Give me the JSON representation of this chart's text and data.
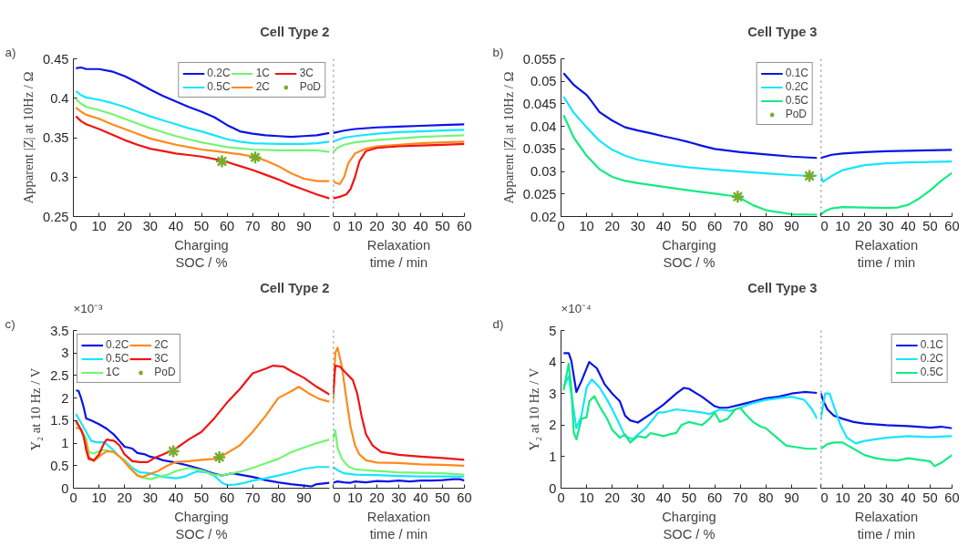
{
  "chart_data": [
    {
      "type": "line",
      "title": "Cell Type 2",
      "ylabel": "Apparent |Z| at 10Hz / Ω",
      "xlabel": "Charging\nSOC / %",
      "annotations": [
        "a)"
      ],
      "xlim": [
        0,
        100
      ],
      "xticks": [
        0,
        10,
        20,
        30,
        40,
        50,
        60,
        70,
        80,
        90
      ],
      "ylim": [
        0.25,
        0.45
      ],
      "yticks": [
        0.25,
        0.3,
        0.35,
        0.4,
        0.45
      ],
      "legend": "top right",
      "series": [
        {
          "name": "0.2C",
          "color": "#0a14e6",
          "x": [
            1,
            3,
            5,
            10,
            15,
            20,
            25,
            30,
            35,
            40,
            45,
            50,
            55,
            60,
            65,
            70,
            75,
            80,
            85,
            90,
            95,
            100
          ],
          "values": [
            0.438,
            0.439,
            0.437,
            0.437,
            0.434,
            0.428,
            0.42,
            0.411,
            0.403,
            0.396,
            0.389,
            0.383,
            0.376,
            0.366,
            0.358,
            0.355,
            0.353,
            0.352,
            0.351,
            0.352,
            0.353,
            0.356
          ]
        },
        {
          "name": "0.5C",
          "color": "#17e5ff",
          "x": [
            1,
            3,
            5,
            10,
            15,
            20,
            25,
            30,
            35,
            40,
            45,
            50,
            55,
            60,
            65,
            70,
            80,
            90,
            95,
            100
          ],
          "values": [
            0.409,
            0.404,
            0.401,
            0.398,
            0.394,
            0.389,
            0.383,
            0.377,
            0.372,
            0.367,
            0.362,
            0.358,
            0.353,
            0.348,
            0.345,
            0.343,
            0.342,
            0.342,
            0.343,
            0.345
          ]
        },
        {
          "name": "1C",
          "color": "#73f573",
          "x": [
            1,
            3,
            5,
            10,
            15,
            20,
            25,
            30,
            35,
            40,
            45,
            50,
            55,
            60,
            70,
            80,
            90,
            95,
            100
          ],
          "values": [
            0.399,
            0.393,
            0.389,
            0.385,
            0.38,
            0.374,
            0.368,
            0.362,
            0.357,
            0.352,
            0.348,
            0.344,
            0.341,
            0.338,
            0.335,
            0.334,
            0.334,
            0.334,
            0.332
          ]
        },
        {
          "name": "2C",
          "color": "#ff8a1c",
          "x": [
            1,
            3,
            5,
            10,
            15,
            20,
            25,
            30,
            35,
            40,
            45,
            50,
            55,
            60,
            65,
            70,
            75,
            80,
            85,
            90,
            95,
            100
          ],
          "values": [
            0.388,
            0.383,
            0.379,
            0.374,
            0.367,
            0.361,
            0.355,
            0.349,
            0.345,
            0.341,
            0.338,
            0.335,
            0.333,
            0.331,
            0.329,
            0.326,
            0.321,
            0.314,
            0.305,
            0.298,
            0.295,
            0.295
          ]
        },
        {
          "name": "3C",
          "color": "#f01414",
          "x": [
            1,
            3,
            5,
            10,
            15,
            20,
            25,
            30,
            35,
            40,
            45,
            50,
            55,
            60,
            65,
            70,
            75,
            80,
            85,
            90,
            95,
            100
          ],
          "values": [
            0.377,
            0.371,
            0.367,
            0.361,
            0.354,
            0.347,
            0.341,
            0.336,
            0.333,
            0.33,
            0.328,
            0.326,
            0.323,
            0.319,
            0.314,
            0.309,
            0.303,
            0.297,
            0.29,
            0.284,
            0.278,
            0.273
          ]
        },
        {
          "name": "PoD",
          "type": "scatter",
          "marker": "cross",
          "color": "#77ac30",
          "x": [
            58,
            71
          ],
          "values": [
            0.32,
            0.325
          ]
        }
      ]
    },
    {
      "type": "line",
      "xlabel": "Relaxation\ntime / min",
      "xlim": [
        0,
        60
      ],
      "xticks": [
        0,
        10,
        20,
        30,
        40,
        50,
        60
      ],
      "ylim": [
        0.25,
        0.45
      ],
      "tick_labels": "x",
      "ref_lines": [
        {
          "axis": "x",
          "value": 0,
          "line_style": "dotted",
          "color": "#404040"
        }
      ],
      "series": [
        {
          "color": "#0a14e6",
          "x": [
            0,
            5,
            10,
            20,
            30,
            40,
            50,
            60
          ],
          "values": [
            0.356,
            0.359,
            0.361,
            0.363,
            0.364,
            0.365,
            0.366,
            0.367
          ]
        },
        {
          "color": "#17e5ff",
          "x": [
            0,
            5,
            10,
            20,
            30,
            40,
            50,
            60
          ],
          "values": [
            0.345,
            0.35,
            0.352,
            0.355,
            0.357,
            0.358,
            0.359,
            0.36
          ]
        },
        {
          "color": "#73f573",
          "x": [
            0,
            2,
            5,
            10,
            20,
            30,
            40,
            50,
            60
          ],
          "values": [
            0.332,
            0.337,
            0.341,
            0.344,
            0.347,
            0.349,
            0.351,
            0.352,
            0.353
          ]
        },
        {
          "color": "#ff8a1c",
          "x": [
            0,
            1,
            3,
            5,
            7,
            10,
            15,
            20,
            30,
            40,
            50,
            60
          ],
          "values": [
            0.295,
            0.293,
            0.291,
            0.3,
            0.318,
            0.33,
            0.336,
            0.339,
            0.341,
            0.343,
            0.344,
            0.345
          ]
        },
        {
          "color": "#f01414",
          "x": [
            0,
            3,
            6,
            8,
            10,
            12,
            15,
            20,
            30,
            40,
            50,
            60
          ],
          "values": [
            0.273,
            0.275,
            0.278,
            0.285,
            0.3,
            0.32,
            0.333,
            0.337,
            0.339,
            0.34,
            0.341,
            0.342
          ]
        }
      ]
    },
    {
      "type": "line",
      "title": "Cell Type 3",
      "ylabel": "Apparent |Z| at 10Hz / Ω",
      "xlabel": "Charging\nSOC / %",
      "annotations": [
        "b)"
      ],
      "xlim": [
        0,
        100
      ],
      "xticks": [
        0,
        10,
        20,
        30,
        40,
        50,
        60,
        70,
        80,
        90
      ],
      "ylim": [
        0.02,
        0.055
      ],
      "yticks": [
        0.02,
        0.025,
        0.03,
        0.035,
        0.04,
        0.045,
        0.05,
        0.055
      ],
      "legend": "top right",
      "series": [
        {
          "name": "0.1C",
          "color": "#0a14e6",
          "x": [
            1,
            3,
            5,
            7,
            10,
            12,
            15,
            20,
            25,
            30,
            35,
            40,
            45,
            50,
            55,
            60,
            70,
            80,
            90,
            100
          ],
          "values": [
            0.0518,
            0.0505,
            0.0492,
            0.0483,
            0.047,
            0.0455,
            0.0432,
            0.0413,
            0.0398,
            0.0391,
            0.0385,
            0.0378,
            0.0372,
            0.0365,
            0.0357,
            0.035,
            0.0343,
            0.0338,
            0.0333,
            0.033
          ]
        },
        {
          "name": "0.2C",
          "color": "#17e5ff",
          "x": [
            1,
            5,
            10,
            15,
            20,
            25,
            30,
            40,
            50,
            60,
            70,
            80,
            90,
            97,
            100
          ],
          "values": [
            0.0466,
            0.043,
            0.0398,
            0.0368,
            0.0348,
            0.0335,
            0.0326,
            0.0316,
            0.0309,
            0.0304,
            0.03,
            0.0296,
            0.0292,
            0.029,
            0.0291
          ]
        },
        {
          "name": "0.5C",
          "color": "#14eb82",
          "x": [
            1,
            5,
            10,
            15,
            20,
            25,
            30,
            40,
            50,
            60,
            69,
            75,
            80,
            90,
            100
          ],
          "values": [
            0.0425,
            0.0375,
            0.0335,
            0.0305,
            0.0288,
            0.0279,
            0.0274,
            0.0266,
            0.0258,
            0.0251,
            0.0244,
            0.0225,
            0.0214,
            0.0205,
            0.0204
          ]
        },
        {
          "name": "PoD",
          "type": "scatter",
          "marker": "cross",
          "color": "#77ac30",
          "x": [
            69,
            97
          ],
          "values": [
            0.0244,
            0.029
          ]
        }
      ]
    },
    {
      "type": "line",
      "xlabel": "Relaxation\ntime / min",
      "xlim": [
        0,
        60
      ],
      "xticks": [
        0,
        10,
        20,
        30,
        40,
        50,
        60
      ],
      "ylim": [
        0.02,
        0.055
      ],
      "tick_labels": "x",
      "ref_lines": [
        {
          "axis": "x",
          "value": 0,
          "line_style": "dotted",
          "color": "#404040"
        }
      ],
      "series": [
        {
          "color": "#0a14e6",
          "x": [
            0,
            5,
            10,
            20,
            30,
            40,
            50,
            60
          ],
          "values": [
            0.033,
            0.0337,
            0.034,
            0.0343,
            0.0345,
            0.0346,
            0.0347,
            0.0348
          ]
        },
        {
          "color": "#17e5ff",
          "x": [
            0,
            1,
            5,
            10,
            20,
            30,
            40,
            50,
            60
          ],
          "values": [
            0.0291,
            0.0277,
            0.029,
            0.0303,
            0.0314,
            0.0318,
            0.032,
            0.0321,
            0.0322
          ]
        },
        {
          "color": "#14eb82",
          "x": [
            0,
            2,
            5,
            10,
            20,
            30,
            35,
            40,
            45,
            50,
            55,
            60
          ],
          "values": [
            0.0204,
            0.0212,
            0.0218,
            0.0221,
            0.022,
            0.0219,
            0.022,
            0.0226,
            0.024,
            0.0258,
            0.0279,
            0.0297
          ]
        }
      ]
    },
    {
      "type": "line",
      "title": "Cell Type 2",
      "ylabel": "Y₂ at 10 Hz / V",
      "xlabel": "Charging\nSOC / %",
      "annotations": [
        "c)",
        "×10⁻³"
      ],
      "xlim": [
        0,
        100
      ],
      "xticks": [
        0,
        10,
        20,
        30,
        40,
        50,
        60,
        70,
        80,
        90
      ],
      "ylim": [
        0,
        3.5
      ],
      "yticks": [
        0,
        0.5,
        1,
        1.5,
        2,
        2.5,
        3,
        3.5
      ],
      "legend": "top left",
      "series": [
        {
          "name": "0.2C",
          "color": "#0a14e6",
          "x": [
            1,
            2,
            3,
            4,
            5,
            7,
            10,
            13,
            16,
            18,
            20,
            23,
            25,
            28,
            30,
            33,
            35,
            40,
            45,
            50,
            55,
            58,
            62,
            65,
            70,
            75,
            80,
            85,
            90,
            93,
            95,
            100
          ],
          "values": [
            2.17,
            2.16,
            2.0,
            1.8,
            1.55,
            1.5,
            1.42,
            1.32,
            1.18,
            1.05,
            0.92,
            0.88,
            0.78,
            0.75,
            0.7,
            0.66,
            0.62,
            0.57,
            0.5,
            0.42,
            0.32,
            0.28,
            0.33,
            0.3,
            0.25,
            0.18,
            0.13,
            0.09,
            0.06,
            0.04,
            0.09,
            0.12
          ]
        },
        {
          "name": "0.5C",
          "color": "#17e5ff",
          "x": [
            1,
            3,
            5,
            7,
            9,
            12,
            15,
            18,
            20,
            23,
            26,
            30,
            35,
            40,
            43,
            48,
            52,
            55,
            58,
            60,
            63,
            67,
            70,
            75,
            80,
            85,
            90,
            95,
            100
          ],
          "values": [
            1.65,
            1.45,
            1.25,
            1.05,
            1.02,
            1.02,
            0.88,
            0.7,
            0.62,
            0.45,
            0.35,
            0.33,
            0.25,
            0.22,
            0.25,
            0.37,
            0.35,
            0.28,
            0.12,
            0.07,
            0.08,
            0.12,
            0.17,
            0.22,
            0.28,
            0.35,
            0.43,
            0.47,
            0.47
          ]
        },
        {
          "name": "1C",
          "color": "#73f573",
          "x": [
            1,
            3,
            5,
            6,
            8,
            10,
            12,
            15,
            18,
            20,
            23,
            26,
            30,
            33,
            37,
            40,
            45,
            50,
            55,
            58,
            62,
            66,
            70,
            75,
            80,
            85,
            90,
            95,
            100
          ],
          "values": [
            1.45,
            1.3,
            1.1,
            0.8,
            0.77,
            0.82,
            0.85,
            0.82,
            0.7,
            0.62,
            0.4,
            0.25,
            0.2,
            0.25,
            0.3,
            0.38,
            0.45,
            0.4,
            0.3,
            0.28,
            0.33,
            0.38,
            0.45,
            0.55,
            0.65,
            0.8,
            0.9,
            1.0,
            1.08
          ]
        },
        {
          "name": "2C",
          "color": "#ff8a1c",
          "x": [
            1,
            3,
            5,
            6,
            8,
            10,
            13,
            16,
            19,
            22,
            25,
            27,
            30,
            33,
            36,
            40,
            45,
            50,
            55,
            57,
            60,
            65,
            70,
            75,
            80,
            85,
            88,
            92,
            96,
            100
          ],
          "values": [
            1.35,
            1.3,
            1.0,
            0.7,
            0.6,
            0.7,
            0.82,
            0.8,
            0.65,
            0.45,
            0.28,
            0.25,
            0.32,
            0.38,
            0.48,
            0.58,
            0.6,
            0.63,
            0.65,
            0.69,
            0.78,
            0.95,
            1.25,
            1.6,
            2.0,
            2.15,
            2.25,
            2.1,
            1.98,
            1.92
          ]
        },
        {
          "name": "3C",
          "color": "#f01414",
          "x": [
            1,
            3,
            4,
            5,
            6,
            8,
            10,
            12,
            13,
            16,
            18,
            20,
            23,
            26,
            29,
            32,
            35,
            40,
            45,
            50,
            55,
            60,
            65,
            70,
            75,
            78,
            82,
            85,
            90,
            95,
            100
          ],
          "values": [
            1.5,
            1.3,
            1.15,
            0.85,
            0.65,
            0.62,
            0.75,
            1.0,
            1.08,
            1.05,
            0.95,
            0.75,
            0.6,
            0.58,
            0.58,
            0.68,
            0.75,
            0.88,
            1.08,
            1.25,
            1.55,
            1.9,
            2.2,
            2.55,
            2.65,
            2.72,
            2.7,
            2.6,
            2.45,
            2.25,
            2.08
          ]
        },
        {
          "name": "PoD",
          "type": "scatter",
          "marker": "cross",
          "color": "#77ac30",
          "x": [
            39,
            57
          ],
          "values": [
            0.82,
            0.69
          ]
        }
      ]
    },
    {
      "type": "line",
      "xlabel": "Relaxation\ntime / min",
      "xlim": [
        0,
        60
      ],
      "xticks": [
        0,
        10,
        20,
        30,
        40,
        50,
        60
      ],
      "ylim": [
        0,
        3.5
      ],
      "tick_labels": "x",
      "ref_lines": [
        {
          "axis": "x",
          "value": 0,
          "line_style": "dotted",
          "color": "#404040"
        }
      ],
      "series": [
        {
          "color": "#0a14e6",
          "x": [
            0,
            2,
            5,
            8,
            10,
            15,
            20,
            25,
            30,
            35,
            40,
            45,
            50,
            55,
            58,
            60
          ],
          "values": [
            0.12,
            0.15,
            0.13,
            0.12,
            0.15,
            0.13,
            0.16,
            0.15,
            0.17,
            0.15,
            0.17,
            0.17,
            0.18,
            0.2,
            0.2,
            0.17
          ]
        },
        {
          "color": "#17e5ff",
          "x": [
            0,
            2,
            5,
            10,
            20,
            30,
            40,
            50,
            60
          ],
          "values": [
            0.47,
            0.4,
            0.33,
            0.3,
            0.29,
            0.27,
            0.26,
            0.26,
            0.26
          ]
        },
        {
          "color": "#73f573",
          "x": [
            0,
            1,
            2,
            4,
            7,
            10,
            15,
            20,
            30,
            40,
            50,
            60
          ],
          "values": [
            1.08,
            1.28,
            0.9,
            0.65,
            0.48,
            0.42,
            0.4,
            0.38,
            0.35,
            0.34,
            0.33,
            0.3
          ]
        },
        {
          "color": "#ff8a1c",
          "x": [
            0,
            1,
            2,
            4,
            6,
            8,
            10,
            12,
            15,
            20,
            30,
            40,
            50,
            60
          ],
          "values": [
            1.92,
            3.0,
            3.12,
            2.7,
            2.0,
            1.35,
            0.95,
            0.75,
            0.62,
            0.57,
            0.56,
            0.53,
            0.52,
            0.5
          ]
        },
        {
          "color": "#f01414",
          "x": [
            0,
            1,
            3,
            6,
            9,
            11,
            13,
            15,
            18,
            22,
            25,
            30,
            40,
            50,
            55,
            60
          ],
          "values": [
            2.08,
            2.72,
            2.7,
            2.55,
            2.4,
            2.1,
            1.6,
            1.2,
            0.95,
            0.8,
            0.78,
            0.74,
            0.7,
            0.67,
            0.65,
            0.63
          ]
        }
      ]
    },
    {
      "type": "line",
      "title": "Cell Type 3",
      "ylabel": "Y₂ at 10 Hz / V",
      "xlabel": "Charging\nSOC / %",
      "annotations": [
        "d)",
        "×10⁻⁴"
      ],
      "xlim": [
        0,
        100
      ],
      "xticks": [
        0,
        10,
        20,
        30,
        40,
        50,
        60,
        70,
        80,
        90
      ],
      "ylim": [
        0,
        5
      ],
      "yticks": [
        0,
        1,
        2,
        3,
        4,
        5
      ],
      "series": [
        {
          "color": "#0a14e6",
          "x": [
            1,
            3,
            4,
            6,
            8,
            11,
            14,
            17,
            20,
            23,
            25,
            27,
            30,
            35,
            40,
            45,
            48,
            50,
            55,
            60,
            62,
            65,
            70,
            75,
            80,
            85,
            90,
            95,
            100
          ],
          "values": [
            4.28,
            4.28,
            4.05,
            3.05,
            3.4,
            4.0,
            3.8,
            3.3,
            3.0,
            2.75,
            2.3,
            2.15,
            2.08,
            2.35,
            2.65,
            3.0,
            3.18,
            3.15,
            2.9,
            2.6,
            2.55,
            2.55,
            2.65,
            2.75,
            2.85,
            2.9,
            3.0,
            3.05,
            3.02
          ]
        },
        {
          "color": "#17e5ff",
          "x": [
            1,
            3,
            4,
            6,
            8,
            10,
            12,
            15,
            18,
            20,
            23,
            25,
            28,
            30,
            33,
            35,
            38,
            40,
            45,
            50,
            55,
            58,
            62,
            66,
            70,
            75,
            80,
            85,
            90,
            95,
            98,
            100
          ],
          "values": [
            3.2,
            3.55,
            3.0,
            1.9,
            2.3,
            3.2,
            3.45,
            3.2,
            2.8,
            2.5,
            2.0,
            1.65,
            1.55,
            1.7,
            1.9,
            2.1,
            2.4,
            2.4,
            2.5,
            2.45,
            2.4,
            2.35,
            2.5,
            2.45,
            2.55,
            2.7,
            2.8,
            2.85,
            2.9,
            2.8,
            2.5,
            2.2
          ]
        },
        {
          "color": "#14eb82",
          "x": [
            1,
            3,
            4,
            5,
            6,
            8,
            10,
            11,
            13,
            15,
            18,
            20,
            23,
            25,
            27,
            30,
            33,
            35,
            40,
            42,
            45,
            47,
            50,
            55,
            58,
            60,
            62,
            65,
            68,
            70,
            72,
            75,
            78,
            80,
            85,
            88,
            92,
            96,
            100
          ],
          "values": [
            3.1,
            3.95,
            3.2,
            1.75,
            1.55,
            2.2,
            2.25,
            2.75,
            2.92,
            2.6,
            2.2,
            1.85,
            1.6,
            1.7,
            1.45,
            1.65,
            1.6,
            1.75,
            1.65,
            1.7,
            1.75,
            2.0,
            2.1,
            2.0,
            2.2,
            2.4,
            2.1,
            2.2,
            2.5,
            2.55,
            2.35,
            2.1,
            1.95,
            1.9,
            1.55,
            1.35,
            1.3,
            1.25,
            1.25
          ]
        }
      ]
    },
    {
      "type": "line",
      "xlabel": "Relaxation\ntime / min",
      "xlim": [
        0,
        60
      ],
      "xticks": [
        0,
        10,
        20,
        30,
        40,
        50,
        60
      ],
      "ylim": [
        0,
        5
      ],
      "tick_labels": "x",
      "legend": "top right",
      "ref_lines": [
        {
          "axis": "x",
          "value": 0,
          "line_style": "dotted",
          "color": "#404040"
        }
      ],
      "series": [
        {
          "name": "0.1C",
          "color": "#0a14e6",
          "x": [
            0,
            1,
            3,
            6,
            10,
            15,
            20,
            30,
            40,
            50,
            55,
            60
          ],
          "values": [
            3.02,
            2.8,
            2.5,
            2.3,
            2.2,
            2.1,
            2.05,
            2.0,
            1.97,
            1.92,
            1.95,
            1.9
          ]
        },
        {
          "name": "0.2C",
          "color": "#17e5ff",
          "x": [
            0,
            2,
            4,
            6,
            9,
            12,
            16,
            20,
            30,
            40,
            50,
            60
          ],
          "values": [
            2.2,
            3.0,
            3.0,
            2.6,
            2.0,
            1.6,
            1.42,
            1.5,
            1.6,
            1.65,
            1.62,
            1.65
          ]
        },
        {
          "name": "0.5C",
          "color": "#14eb82",
          "x": [
            0,
            3,
            6,
            10,
            15,
            20,
            25,
            30,
            35,
            40,
            45,
            50,
            52,
            55,
            58,
            60
          ],
          "values": [
            1.25,
            1.4,
            1.45,
            1.45,
            1.25,
            1.05,
            0.95,
            0.9,
            0.88,
            0.95,
            0.9,
            0.85,
            0.7,
            0.8,
            0.95,
            1.05
          ]
        }
      ]
    }
  ]
}
